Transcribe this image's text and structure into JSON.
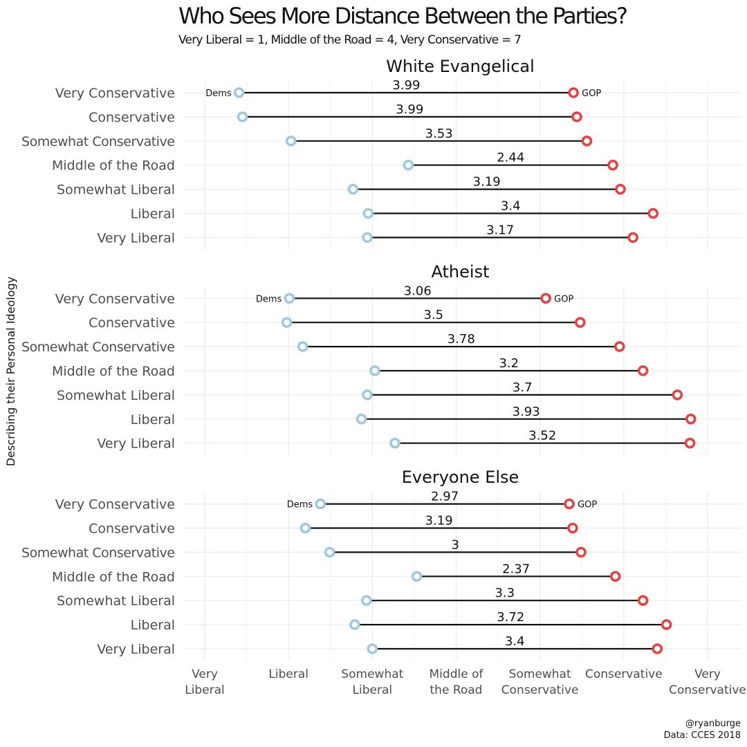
{
  "chart_data": {
    "type": "dumbbell",
    "title": "Who Sees More Distance Between the Parties?",
    "subtitle": "Very Liberal = 1, Middle of the Road = 4, Very Conservative = 7",
    "ylabel": "Describing their Personal Ideology",
    "xlim": [
      1,
      7
    ],
    "x_ticks": [
      {
        "value": 1,
        "label": [
          "Very",
          "Liberal"
        ]
      },
      {
        "value": 2,
        "label": [
          "Liberal"
        ]
      },
      {
        "value": 3,
        "label": [
          "Somewhat",
          "Liberal"
        ]
      },
      {
        "value": 4,
        "label": [
          "Middle of",
          "the Road"
        ]
      },
      {
        "value": 5,
        "label": [
          "Somewhat",
          "Conservative"
        ]
      },
      {
        "value": 6,
        "label": [
          "Conservative"
        ]
      },
      {
        "value": 7,
        "label": [
          "Very",
          "Conservative"
        ]
      }
    ],
    "categories": [
      "Very Conservative",
      "Conservative",
      "Somewhat Conservative",
      "Middle of the Road",
      "Somewhat Liberal",
      "Liberal",
      "Very Liberal"
    ],
    "series_labels": {
      "dems": "Dems",
      "gop": "GOP"
    },
    "colors": {
      "dems": "#9ecae1",
      "gop": "#e8413f"
    },
    "panels": [
      {
        "facet": "White Evangelical",
        "rows": [
          {
            "category": "Very Conservative",
            "dems": 1.41,
            "gop": 5.4,
            "diff": "3.99"
          },
          {
            "category": "Conservative",
            "dems": 1.45,
            "gop": 5.44,
            "diff": "3.99"
          },
          {
            "category": "Somewhat Conservative",
            "dems": 2.03,
            "gop": 5.56,
            "diff": "3.53"
          },
          {
            "category": "Middle of the Road",
            "dems": 3.43,
            "gop": 5.87,
            "diff": "2.44"
          },
          {
            "category": "Somewhat Liberal",
            "dems": 2.77,
            "gop": 5.96,
            "diff": "3.19"
          },
          {
            "category": "Liberal",
            "dems": 2.95,
            "gop": 6.35,
            "diff": "3.4"
          },
          {
            "category": "Very Liberal",
            "dems": 2.94,
            "gop": 6.11,
            "diff": "3.17"
          }
        ]
      },
      {
        "facet": "Atheist",
        "rows": [
          {
            "category": "Very Conservative",
            "dems": 2.01,
            "gop": 5.07,
            "diff": "3.06"
          },
          {
            "category": "Conservative",
            "dems": 1.98,
            "gop": 5.48,
            "diff": "3.5"
          },
          {
            "category": "Somewhat Conservative",
            "dems": 2.17,
            "gop": 5.95,
            "diff": "3.78"
          },
          {
            "category": "Middle of the Road",
            "dems": 3.03,
            "gop": 6.23,
            "diff": "3.2"
          },
          {
            "category": "Somewhat Liberal",
            "dems": 2.94,
            "gop": 6.64,
            "diff": "3.7"
          },
          {
            "category": "Liberal",
            "dems": 2.87,
            "gop": 6.8,
            "diff": "3.93"
          },
          {
            "category": "Very Liberal",
            "dems": 3.27,
            "gop": 6.79,
            "diff": "3.52"
          }
        ]
      },
      {
        "facet": "Everyone Else",
        "rows": [
          {
            "category": "Very Conservative",
            "dems": 2.38,
            "gop": 5.35,
            "diff": "2.97"
          },
          {
            "category": "Conservative",
            "dems": 2.2,
            "gop": 5.39,
            "diff": "3.19"
          },
          {
            "category": "Somewhat Conservative",
            "dems": 2.49,
            "gop": 5.49,
            "diff": "3"
          },
          {
            "category": "Middle of the Road",
            "dems": 3.53,
            "gop": 5.9,
            "diff": "2.37"
          },
          {
            "category": "Somewhat Liberal",
            "dems": 2.93,
            "gop": 6.23,
            "diff": "3.3"
          },
          {
            "category": "Liberal",
            "dems": 2.79,
            "gop": 6.51,
            "diff": "3.72"
          },
          {
            "category": "Very Liberal",
            "dems": 3.0,
            "gop": 6.4,
            "diff": "3.4"
          }
        ]
      }
    ],
    "caption": [
      "@ryanburge",
      "Data: CCES 2018"
    ],
    "grid": true,
    "legend": "none"
  }
}
